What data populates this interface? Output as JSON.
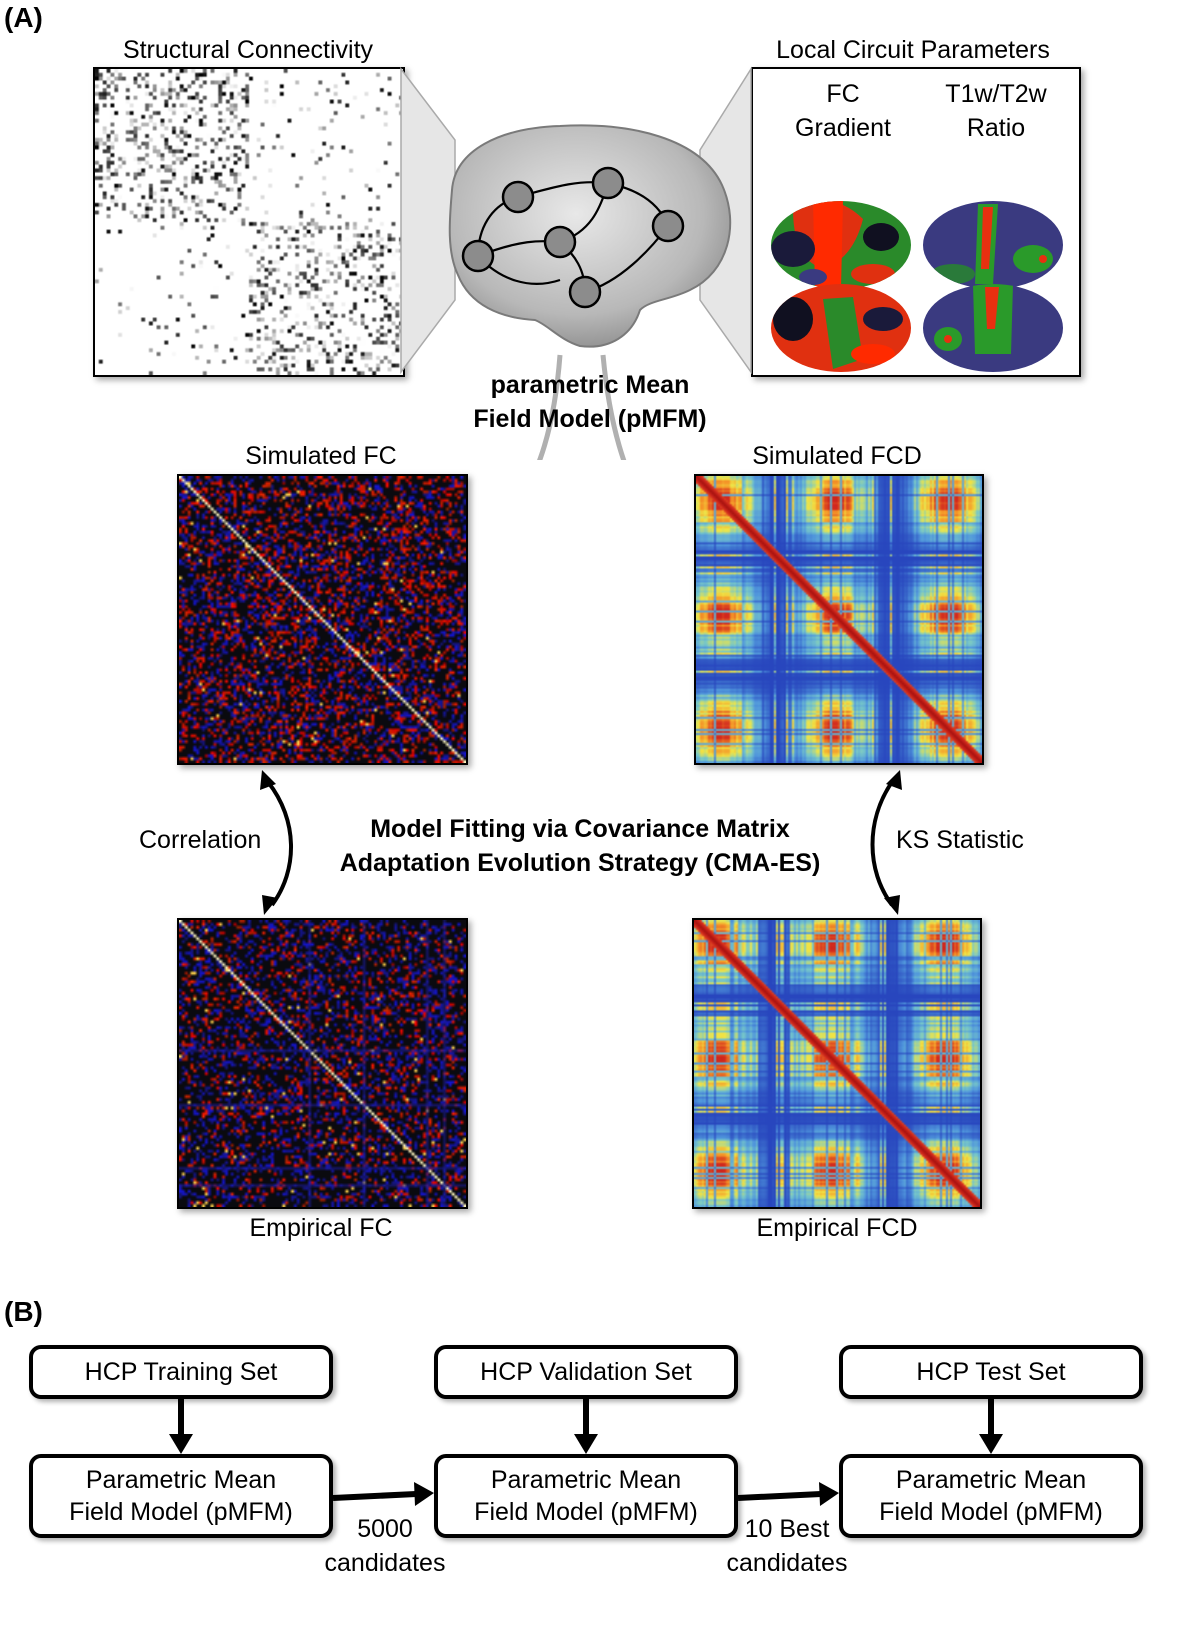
{
  "panel_a": {
    "label": "(A)",
    "structural_connectivity": "Structural Connectivity",
    "local_circuit_parameters": "Local Circuit Parameters",
    "fc_gradient": [
      "FC",
      "Gradient"
    ],
    "t1w_t2w": [
      "T1w/T2w",
      "Ratio"
    ],
    "model_name": [
      "parametric Mean",
      "Field Model (pMFM)"
    ],
    "simulated_fc": "Simulated FC",
    "simulated_fcd": "Simulated FCD",
    "empirical_fc": "Empirical FC",
    "empirical_fcd": "Empirical FCD",
    "correlation": "Correlation",
    "ks_statistic": "KS Statistic",
    "fitting": [
      "Model Fitting via Covariance Matrix",
      "Adaptation Evolution Strategy (CMA-ES)"
    ]
  },
  "panel_b": {
    "label": "(B)",
    "datasets": [
      "HCP Training Set",
      "HCP Validation Set",
      "HCP Test Set"
    ],
    "model_box": [
      "Parametric Mean",
      "Field Model (pMFM)"
    ],
    "transition_1": [
      "5000",
      "candidates"
    ],
    "transition_2": [
      "10 Best",
      "candidates"
    ]
  },
  "colors": {
    "arrow_gray": "#b0b0b0",
    "brain_gray": "#9a9a9a",
    "node_gray": "#8c8c8c",
    "fc_red": "#e01010",
    "fcd_blue": "#3a5fc8",
    "fcd_yellow": "#f4e23a"
  }
}
